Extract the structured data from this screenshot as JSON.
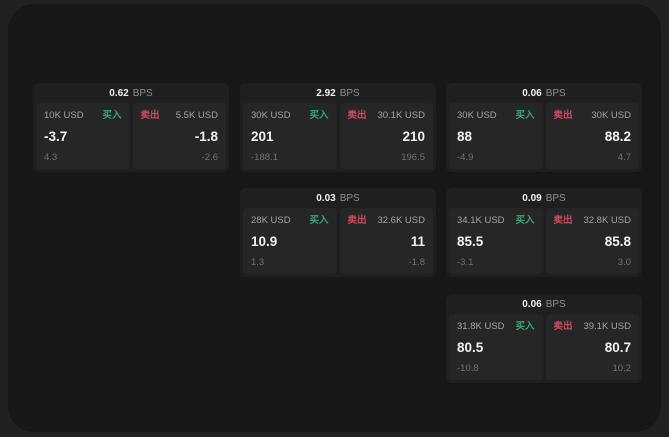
{
  "colors": {
    "page_bg": "#212121",
    "window_bg": "#171717",
    "card_bg": "#1f1f1f",
    "panel_bg": "#262626",
    "buy_green": "#36a578",
    "sell_red": "#cf4a61"
  },
  "header_unit": "BPS",
  "cards": [
    {
      "col": 0,
      "row": 0,
      "bps": "0.62",
      "buy": {
        "amount": "10K USD",
        "label": "买入",
        "price": "-3.7",
        "delta": "4.3"
      },
      "sell": {
        "label": "卖出",
        "amount": "5.5K USD",
        "price": "-1.8",
        "delta": "-2.6"
      }
    },
    {
      "col": 1,
      "row": 0,
      "bps": "2.92",
      "buy": {
        "amount": "30K USD",
        "label": "买入",
        "price": "201",
        "delta": "-188.1"
      },
      "sell": {
        "label": "卖出",
        "amount": "30.1K USD",
        "price": "210",
        "delta": "196.5"
      }
    },
    {
      "col": 1,
      "row": 1,
      "bps": "0.03",
      "buy": {
        "amount": "28K USD",
        "label": "买入",
        "price": "10.9",
        "delta": "1.3"
      },
      "sell": {
        "label": "卖出",
        "amount": "32.6K USD",
        "price": "11",
        "delta": "-1.8"
      }
    },
    {
      "col": 2,
      "row": 0,
      "bps": "0.06",
      "buy": {
        "amount": "30K USD",
        "label": "买入",
        "price": "88",
        "delta": "-4.9"
      },
      "sell": {
        "label": "卖出",
        "amount": "30K USD",
        "price": "88.2",
        "delta": "4.7"
      }
    },
    {
      "col": 2,
      "row": 1,
      "bps": "0.09",
      "buy": {
        "amount": "34.1K USD",
        "label": "买入",
        "price": "85.5",
        "delta": "-3.1"
      },
      "sell": {
        "label": "卖出",
        "amount": "32.8K USD",
        "price": "85.8",
        "delta": "3.0"
      }
    },
    {
      "col": 2,
      "row": 2,
      "bps": "0.06",
      "buy": {
        "amount": "31.8K USD",
        "label": "买入",
        "price": "80.5",
        "delta": "-10.8"
      },
      "sell": {
        "label": "卖出",
        "amount": "39.1K USD",
        "price": "80.7",
        "delta": "10.2"
      }
    }
  ]
}
